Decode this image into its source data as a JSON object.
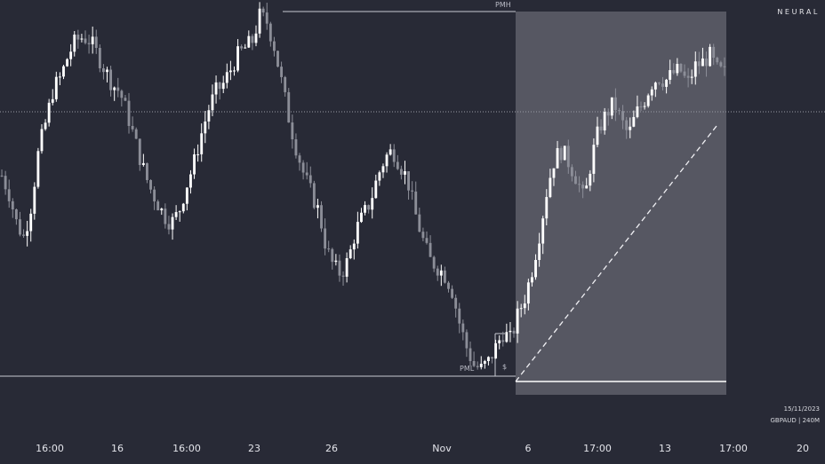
{
  "brand": "NEURAL",
  "footer": {
    "date": "15/11/2023",
    "instrument": "GBPAUD | 240M"
  },
  "colors": {
    "background": "#282a36",
    "candle_up": "#ffffff",
    "candle_down": "#8c8e98",
    "highlight_box": "#5a5b66",
    "level_line": "#c9cad2",
    "baseline": "#ffffff"
  },
  "chart_data": {
    "type": "candlestick",
    "symbol": "GBPAUD",
    "timeframe": "240M",
    "x_tick_labels": [
      "16:00",
      "16",
      "16:00",
      "23",
      "26",
      "Nov",
      "6",
      "17:00",
      "13",
      "17:00",
      "20"
    ],
    "levels": {
      "PMH": "PMH",
      "PML": "PML",
      "marker": "$"
    },
    "price_index": [
      55,
      50,
      42,
      38,
      47,
      62,
      70,
      79,
      82,
      88,
      92,
      93,
      92,
      88,
      84,
      80,
      78,
      72,
      65,
      58,
      52,
      48,
      44,
      42,
      45,
      52,
      58,
      66,
      73,
      78,
      80,
      84,
      88,
      90,
      92,
      99,
      97,
      90,
      80,
      70,
      62,
      55,
      50,
      45,
      35,
      30,
      28,
      32,
      40,
      44,
      48,
      55,
      60,
      62,
      58,
      54,
      45,
      38,
      32,
      30,
      28,
      24,
      15,
      8,
      3,
      2,
      4,
      8,
      12,
      10,
      17,
      22,
      30,
      40,
      52,
      60,
      62,
      58,
      54,
      48,
      60,
      68,
      72,
      75,
      70,
      66,
      72,
      75,
      80,
      82,
      81,
      83,
      84,
      80,
      85,
      86,
      88,
      84,
      83
    ],
    "yrange": [
      0,
      100
    ]
  }
}
